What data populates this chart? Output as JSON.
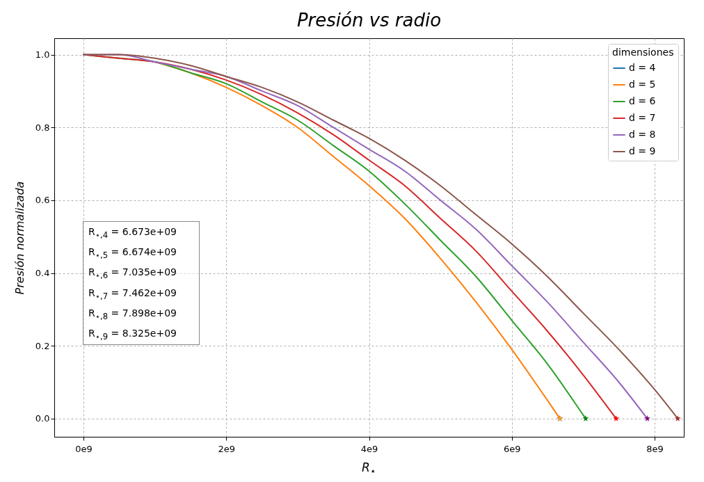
{
  "chart_data": {
    "type": "line",
    "title": "Presión vs radio",
    "xlabel": "R$_{⋆}$",
    "ylabel": "Presión normalizada",
    "legend_title": "dimensiones",
    "legend": "top right",
    "grid": true,
    "line_style": "solid",
    "xlim": [
      -410000000.0,
      8410000000.0
    ],
    "xticks": [
      {
        "value": 0,
        "label": "0e9"
      },
      {
        "value": 2000000000.0,
        "label": "2e9"
      },
      {
        "value": 4000000000.0,
        "label": "4e9"
      },
      {
        "value": 6000000000.0,
        "label": "6e9"
      },
      {
        "value": 8000000000.0,
        "label": "8e9"
      }
    ],
    "ylim": [
      -0.05,
      1.045
    ],
    "yticks": [
      {
        "value": 0,
        "label": "0.0"
      },
      0.2,
      0.4,
      0.6,
      0.8,
      {
        "value": 1,
        "label": "1.0"
      }
    ],
    "annotations": [
      "R$_{⋆,4}$ = 6.673e+09",
      "R$_{⋆,5}$ = 6.674e+09",
      "R$_{⋆,6}$ = 7.035e+09",
      "R$_{⋆,7}$ = 7.462e+09",
      "R$_{⋆,8}$ = 7.898e+09",
      "R$_{⋆,9}$ = 8.325e+09"
    ],
    "series": [
      {
        "name": "d = 4",
        "color": "#1f77b4"
      },
      {
        "name": "d = 5",
        "color": "#ff7f0e",
        "x": [
          1000000000.0,
          1500000000.0,
          2000000000.0,
          2500000000.0,
          3000000000.0,
          3500000000.0,
          4000000000.0,
          4500000000.0,
          5000000000.0,
          5500000000.0,
          6000000000.0,
          6500000000.0,
          6674000000.0
        ],
        "values": [
          0.98,
          0.95,
          0.91,
          0.86,
          0.8,
          0.72,
          0.64,
          0.55,
          0.44,
          0.32,
          0.19,
          0.05,
          0
        ]
      },
      {
        "name": "d = 6",
        "color": "#2ca02c",
        "x": [
          0,
          500000000.0,
          1000000000.0,
          1500000000.0,
          2000000000.0,
          2500000000.0,
          3000000000.0,
          3500000000.0,
          4000000000.0,
          4500000000.0,
          5000000000.0,
          5500000000.0,
          6000000000.0,
          6500000000.0,
          7000000000.0,
          7035000000.0
        ],
        "values": [
          1,
          0.99,
          0.98,
          0.95,
          0.92,
          0.87,
          0.82,
          0.75,
          0.68,
          0.59,
          0.49,
          0.39,
          0.27,
          0.15,
          0.01,
          0
        ]
      },
      {
        "name": "d = 7",
        "color": "#d62728",
        "x": [
          0,
          500000000.0,
          1000000000.0,
          1500000000.0,
          2000000000.0,
          2500000000.0,
          3000000000.0,
          3500000000.0,
          4000000000.0,
          4500000000.0,
          5000000000.0,
          5500000000.0,
          6000000000.0,
          6500000000.0,
          7000000000.0,
          7462000000.0
        ],
        "values": [
          1,
          0.99,
          0.98,
          0.96,
          0.93,
          0.89,
          0.84,
          0.78,
          0.71,
          0.64,
          0.55,
          0.46,
          0.35,
          0.24,
          0.12,
          0
        ]
      },
      {
        "name": "d = 8",
        "color": "#9467bd",
        "x": [
          0,
          500000000.0,
          1000000000.0,
          1500000000.0,
          2000000000.0,
          2500000000.0,
          3000000000.0,
          3500000000.0,
          4000000000.0,
          4500000000.0,
          5000000000.0,
          5500000000.0,
          6000000000.0,
          6500000000.0,
          7000000000.0,
          7500000000.0,
          7898000000.0
        ],
        "values": [
          1,
          1,
          0.98,
          0.96,
          0.94,
          0.9,
          0.86,
          0.8,
          0.74,
          0.68,
          0.6,
          0.52,
          0.42,
          0.32,
          0.21,
          0.1,
          0
        ]
      },
      {
        "name": "d = 9",
        "color": "#8c564b",
        "x": [
          0,
          500000000.0,
          1000000000.0,
          1500000000.0,
          2000000000.0,
          2500000000.0,
          3000000000.0,
          3500000000.0,
          4000000000.0,
          4500000000.0,
          5000000000.0,
          5500000000.0,
          6000000000.0,
          6500000000.0,
          7000000000.0,
          7500000000.0,
          8000000000.0,
          8325000000.0
        ],
        "values": [
          1,
          1,
          0.99,
          0.97,
          0.94,
          0.91,
          0.87,
          0.82,
          0.77,
          0.71,
          0.64,
          0.56,
          0.48,
          0.39,
          0.29,
          0.19,
          0.08,
          0
        ]
      },
      {
        "type": "scatter",
        "marker": "star",
        "x": [
          6673000000.0,
          6674000000.0,
          7035000000.0,
          7462000000.0,
          7898000000.0,
          8325000000.0
        ],
        "values": [
          0,
          0,
          0,
          0,
          0,
          0
        ],
        "colors": [
          "#0000ff",
          "#ffa500",
          "#008000",
          "#ff0000",
          "#800080",
          "#a52a2a"
        ]
      }
    ]
  }
}
